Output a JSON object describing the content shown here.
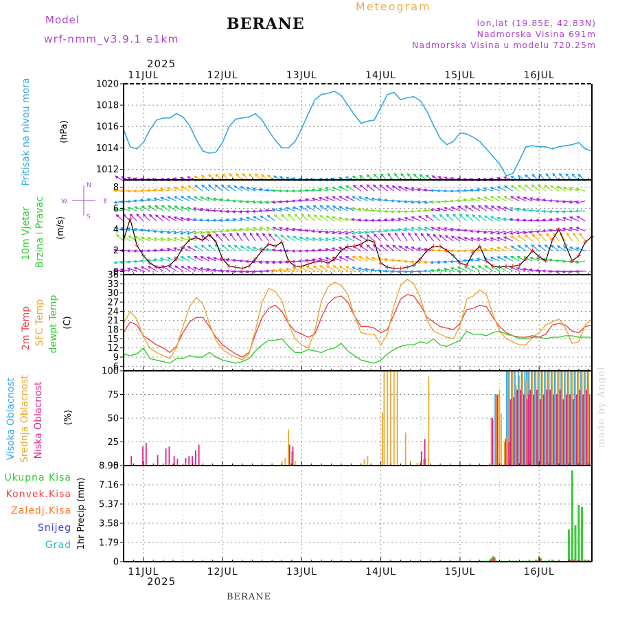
{
  "header": {
    "model_label": "Model",
    "model_name": "wrf-nmm_v3.9.1  e1km",
    "station": "BERANE",
    "title": "Meteogram",
    "lonlat": "lon,lat (19.85E, 42.83N)",
    "elevation": "Nadmorska Visina 691m",
    "model_elevation": "Nadmorska Visina u modelu 720.25m",
    "year_top": "2025",
    "year_bottom": "2025",
    "footer_station": "BERANE",
    "watermark": "made by Angel"
  },
  "colors": {
    "pressure": "#33aadd",
    "temp2m": "#ee4444",
    "sfc": "#e8a830",
    "dew": "#33cc33",
    "high": "#33aaee",
    "mid": "#e8a830",
    "low": "#dd2288",
    "total": "#33cc33",
    "conv": "#ee4444",
    "frozen": "#ff7722",
    "snow": "#4433dd",
    "grad": "#22bbbb",
    "purple": "#aa44cc",
    "wind_line": "#000000",
    "wind_marks": "#ee3333"
  },
  "chart_data": [
    {
      "type": "line",
      "name": "pressure",
      "ylabel_lines": [
        "Pritisak na nivou mora",
        "(hPa)"
      ],
      "ylim": [
        1011,
        1020
      ],
      "yticks": [
        1012,
        1014,
        1016,
        1018,
        1020
      ],
      "xlim": [
        0,
        142
      ],
      "x_ticks_labels": [
        "11JUL",
        "12JUL",
        "13JUL",
        "14JUL",
        "15JUL",
        "16JUL"
      ],
      "x": [
        0,
        2,
        4,
        6,
        8,
        10,
        12,
        14,
        16,
        18,
        20,
        22,
        24,
        26,
        28,
        30,
        32,
        34,
        36,
        38,
        40,
        42,
        44,
        46,
        48,
        50,
        52,
        54,
        56,
        58,
        60,
        62,
        64,
        66,
        68,
        70,
        72,
        74,
        76,
        78,
        80,
        82,
        84,
        86,
        88,
        90,
        92,
        94,
        96,
        98,
        100,
        102,
        104,
        106,
        108,
        110,
        112,
        114,
        116,
        118,
        120,
        122,
        124,
        126,
        128,
        130,
        132,
        134,
        136,
        138,
        140,
        142
      ],
      "values": [
        1015.7,
        1014.1,
        1013.9,
        1014.5,
        1015.7,
        1016.6,
        1016.8,
        1016.8,
        1017.2,
        1016.9,
        1016.1,
        1014.8,
        1013.7,
        1013.5,
        1013.6,
        1014.5,
        1016.0,
        1016.7,
        1016.8,
        1016.9,
        1017.2,
        1016.6,
        1015.6,
        1014.7,
        1014.0,
        1014.0,
        1014.6,
        1015.8,
        1017.2,
        1018.5,
        1019.0,
        1019.1,
        1019.3,
        1018.9,
        1018.0,
        1017.1,
        1016.3,
        1016.5,
        1016.6,
        1017.8,
        1019.0,
        1019.2,
        1018.5,
        1018.7,
        1018.8,
        1018.4,
        1017.4,
        1016.1,
        1014.9,
        1014.3,
        1014.6,
        1015.4,
        1015.3,
        1015.0,
        1014.6,
        1013.9,
        1013.2,
        1012.5,
        1011.4,
        1011.6,
        1012.8,
        1014.1,
        1014.2,
        1014.1,
        1014.1,
        1013.9,
        1014.1,
        1014.2,
        1014.3,
        1014.5,
        1013.9,
        1013.7
      ]
    },
    {
      "type": "line",
      "name": "wind",
      "ylabel_lines": [
        "10m Vjetar",
        "Brzina i Pravac",
        "(m/s)"
      ],
      "compass": [
        "N",
        "S",
        "W",
        "E"
      ],
      "ylim": [
        -0.3,
        8.7
      ],
      "yticks": [
        0,
        2,
        4,
        6,
        8
      ],
      "xlim": [
        0,
        142
      ],
      "x_ticks_labels": [
        "11JUL",
        "12JUL",
        "13JUL",
        "14JUL",
        "15JUL",
        "16JUL"
      ],
      "x": [
        0,
        2,
        4,
        6,
        8,
        10,
        12,
        14,
        16,
        18,
        20,
        22,
        24,
        26,
        28,
        30,
        32,
        34,
        36,
        38,
        40,
        42,
        44,
        46,
        48,
        50,
        52,
        54,
        56,
        58,
        60,
        62,
        64,
        66,
        68,
        70,
        72,
        74,
        76,
        78,
        80,
        82,
        84,
        86,
        88,
        90,
        92,
        94,
        96,
        98,
        100,
        102,
        104,
        106,
        108,
        110,
        112,
        114,
        116,
        118,
        120,
        122,
        124,
        126,
        128,
        130,
        132,
        134,
        136,
        138,
        140,
        142
      ],
      "values": [
        3.0,
        5.0,
        2.5,
        1.5,
        0.8,
        0.4,
        0.4,
        0.6,
        1.2,
        2.3,
        3.0,
        3.2,
        3.0,
        3.5,
        2.8,
        1.2,
        0.5,
        0.4,
        0.3,
        0.5,
        1.2,
        2.0,
        2.6,
        2.4,
        2.8,
        1.0,
        0.5,
        0.5,
        0.7,
        0.9,
        1.0,
        0.8,
        1.2,
        2.0,
        2.4,
        2.4,
        2.6,
        3.0,
        2.8,
        0.8,
        0.4,
        0.3,
        0.3,
        0.4,
        0.6,
        1.2,
        2.0,
        2.4,
        2.4,
        2.0,
        1.5,
        0.8,
        0.6,
        1.8,
        2.4,
        1.0,
        0.5,
        0.4,
        0.5,
        0.5,
        0.6,
        1.2,
        2.0,
        1.4,
        1.0,
        3.0,
        4.0,
        2.5,
        1.0,
        1.5,
        2.8,
        3.3
      ]
    },
    {
      "type": "line",
      "name": "temperature",
      "ylabel_lines": [
        "2m Temp",
        "SFC Temp",
        "dewpt Temp",
        "(C)"
      ],
      "ylim": [
        4.5,
        36
      ],
      "yticks": [
        6,
        9,
        12,
        15,
        18,
        21,
        24,
        27,
        30,
        33,
        36
      ],
      "xlim": [
        0,
        142
      ],
      "x_ticks_labels": [
        "11JUL",
        "12JUL",
        "13JUL",
        "14JUL",
        "15JUL",
        "16JUL"
      ],
      "x": [
        0,
        2,
        4,
        6,
        8,
        10,
        12,
        14,
        16,
        18,
        20,
        22,
        24,
        26,
        28,
        30,
        32,
        34,
        36,
        38,
        40,
        42,
        44,
        46,
        48,
        50,
        52,
        54,
        56,
        58,
        60,
        62,
        64,
        66,
        68,
        70,
        72,
        74,
        76,
        78,
        80,
        82,
        84,
        86,
        88,
        90,
        92,
        94,
        96,
        98,
        100,
        102,
        104,
        106,
        108,
        110,
        112,
        114,
        116,
        118,
        120,
        122,
        124,
        126,
        128,
        130,
        132,
        134,
        136,
        138,
        140,
        142
      ],
      "series": [
        {
          "name": "2m Temp",
          "color_key": "temp2m",
          "values": [
            17.0,
            20.5,
            19.5,
            16.0,
            14.5,
            13.0,
            12.0,
            10.5,
            12.5,
            17.0,
            20.5,
            22.0,
            22.0,
            19.0,
            15.5,
            13.0,
            11.5,
            10.0,
            9.0,
            10.5,
            16.5,
            22.0,
            25.0,
            26.0,
            24.0,
            20.0,
            17.5,
            16.5,
            15.5,
            16.5,
            22.0,
            26.5,
            28.5,
            29.0,
            27.0,
            22.5,
            19.0,
            19.0,
            18.5,
            17.0,
            18.0,
            23.0,
            28.0,
            29.5,
            29.0,
            26.0,
            22.0,
            20.5,
            19.0,
            18.5,
            18.0,
            20.0,
            24.5,
            25.0,
            26.0,
            25.5,
            22.0,
            19.0,
            17.0,
            16.0,
            15.5,
            15.5,
            16.0,
            15.5,
            16.5,
            19.5,
            20.0,
            19.5,
            17.5,
            17.0,
            19.0,
            19.5
          ]
        },
        {
          "name": "SFC Temp",
          "color_key": "sfc",
          "values": [
            20.0,
            24.0,
            21.5,
            15.5,
            12.0,
            10.5,
            9.5,
            8.5,
            12.0,
            19.0,
            25.5,
            28.5,
            26.5,
            20.0,
            14.5,
            11.5,
            10.0,
            9.0,
            8.0,
            10.0,
            18.0,
            27.0,
            31.5,
            30.5,
            27.5,
            20.0,
            15.0,
            13.0,
            12.0,
            17.5,
            27.5,
            32.0,
            33.5,
            32.5,
            29.5,
            22.5,
            17.0,
            16.5,
            16.5,
            13.0,
            16.5,
            26.0,
            32.5,
            34.5,
            33.0,
            28.5,
            21.0,
            17.5,
            16.5,
            15.5,
            15.0,
            19.0,
            28.0,
            29.0,
            31.0,
            29.5,
            23.0,
            17.5,
            15.0,
            14.0,
            13.0,
            13.0,
            15.5,
            17.0,
            19.5,
            20.5,
            21.5,
            18.5,
            13.5,
            14.0,
            19.5,
            21.5
          ]
        },
        {
          "name": "dewpt Temp",
          "color_key": "dew",
          "values": [
            10.0,
            9.5,
            10.0,
            12.0,
            8.5,
            8.0,
            7.5,
            7.0,
            8.5,
            8.5,
            9.5,
            9.0,
            9.0,
            10.5,
            9.0,
            8.0,
            7.5,
            7.0,
            7.5,
            8.5,
            11.0,
            13.0,
            14.5,
            14.5,
            15.0,
            12.5,
            10.5,
            10.5,
            11.5,
            11.0,
            10.5,
            11.5,
            12.0,
            13.5,
            11.0,
            9.5,
            8.0,
            7.5,
            7.0,
            8.0,
            10.0,
            11.5,
            12.5,
            13.0,
            13.0,
            14.0,
            13.5,
            15.0,
            13.0,
            12.5,
            13.5,
            14.5,
            17.5,
            16.5,
            16.5,
            16.0,
            17.0,
            17.5,
            16.5,
            16.0,
            15.0,
            15.0,
            15.5,
            15.5,
            15.0,
            15.5,
            15.5,
            16.0,
            16.0,
            15.5,
            15.5,
            15.5
          ]
        }
      ]
    },
    {
      "type": "bar",
      "name": "cloud",
      "ylabel_lines": [
        "Visoka Oblacnost",
        "Srednja Oblacnost",
        "Niska Oblacnost",
        "(%)"
      ],
      "ylim": [
        0,
        100
      ],
      "yticks": [
        0,
        25,
        50,
        75,
        100
      ],
      "xlim": [
        0,
        142
      ],
      "x_ticks_labels": [
        "11JUL",
        "12JUL",
        "13JUL",
        "14JUL",
        "15JUL",
        "16JUL"
      ],
      "x": [
        2.0,
        5.5,
        6.5,
        10.0,
        12.5,
        13.5,
        15.0,
        16.0,
        18.5,
        19.5,
        20.5,
        21.5,
        22.5,
        23.5,
        48.0,
        49.0,
        50.0,
        51.0,
        52.0,
        73.0,
        74.0,
        78.5,
        79.0,
        80.0,
        81.0,
        82.0,
        83.0,
        85.5,
        87.0,
        88.0,
        89.0,
        90.0,
        91.0,
        91.5,
        92.5,
        102.0,
        111.5,
        112.0,
        113.0,
        113.5,
        114.0,
        114.5,
        115.5,
        116.0,
        116.5,
        117.0,
        118.0,
        119.0,
        120.0,
        121.0,
        122.0,
        122.5,
        123.0,
        124.0,
        125.0,
        126.0,
        127.0,
        128.0,
        129.0,
        130.0,
        131.0,
        132.0,
        133.0,
        134.0,
        135.0,
        136.0,
        137.0,
        138.0,
        139.0,
        140.0,
        141.0
      ],
      "series": [
        {
          "name": "Visoka Oblacnost",
          "color_key": "high",
          "values": [
            0,
            0,
            0,
            0,
            0,
            0,
            0,
            0,
            0,
            0,
            0,
            0,
            0,
            0,
            0,
            0,
            0,
            0,
            0,
            0,
            0,
            0,
            0,
            0,
            0,
            0,
            0,
            0,
            0,
            0,
            0,
            0,
            0,
            0,
            0,
            0,
            0,
            0,
            75,
            0,
            0,
            0,
            0,
            0,
            100,
            100,
            100,
            100,
            100,
            100,
            100,
            100,
            100,
            100,
            100,
            100,
            100,
            100,
            100,
            100,
            100,
            100,
            100,
            100,
            100,
            100,
            100,
            100,
            100,
            100,
            100
          ]
        },
        {
          "name": "Srednja Oblacnost",
          "color_key": "mid",
          "values": [
            0,
            0,
            0,
            0,
            0,
            0,
            0,
            0,
            0,
            0,
            0,
            0,
            0,
            0,
            5,
            8,
            38,
            15,
            5,
            7,
            10,
            56,
            100,
            100,
            100,
            100,
            100,
            35,
            5,
            0,
            3,
            5,
            7,
            8,
            94,
            0,
            50,
            48,
            75,
            75,
            80,
            55,
            25,
            30,
            100,
            100,
            100,
            85,
            95,
            100,
            90,
            70,
            100,
            100,
            100,
            100,
            100,
            100,
            100,
            100,
            100,
            100,
            100,
            100,
            100,
            100,
            100,
            100,
            100,
            100,
            100
          ]
        },
        {
          "name": "Niska Oblacnost",
          "color_key": "low",
          "values": [
            10,
            20,
            24,
            11,
            18,
            20,
            10,
            7,
            8,
            10,
            10,
            16,
            22,
            0,
            0,
            0,
            22,
            20,
            0,
            0,
            0,
            0,
            0,
            0,
            0,
            0,
            0,
            0,
            0,
            0,
            0,
            15,
            28,
            0,
            0,
            0,
            50,
            0,
            75,
            0,
            0,
            0,
            28,
            0,
            25,
            70,
            72,
            80,
            80,
            75,
            70,
            75,
            80,
            75,
            80,
            70,
            75,
            80,
            80,
            75,
            75,
            80,
            70,
            75,
            75,
            70,
            75,
            80,
            75,
            80,
            75
          ]
        }
      ]
    },
    {
      "type": "bar",
      "name": "precipitation",
      "ylabel_lines": [
        "1hr Precip (mm)"
      ],
      "legend": [
        "Ukupna Kisa",
        "Konvek.Kisa",
        "Zaledj.Kisa",
        "Snijeg",
        "Grad"
      ],
      "ylim": [
        0,
        8.95
      ],
      "yticks": [
        0,
        1.79,
        3.58,
        5.37,
        7.16,
        8.95
      ],
      "yticklabels": [
        "0",
        "1.79",
        "3.58",
        "5.37",
        "7.16",
        "8.95"
      ],
      "xlim": [
        0,
        142
      ],
      "x_ticks_labels": [
        "11JUL",
        "12JUL",
        "13JUL",
        "14JUL",
        "15JUL",
        "16JUL"
      ],
      "x": [
        108.0,
        109.0,
        110.0,
        111.5,
        112.0,
        113.0,
        114.0,
        117.0,
        118.0,
        119.0,
        121.0,
        122.0,
        123.0,
        124.0,
        125.0,
        126.0,
        128.0,
        129.0,
        130.0,
        135.0,
        136.0,
        137.0,
        138.0,
        139.0,
        140.0,
        141.0
      ],
      "series": [
        {
          "name": "Ukupna Kisa",
          "color_key": "total",
          "values": [
            0.05,
            0.1,
            0.1,
            0.3,
            0.5,
            0.1,
            0.1,
            0.1,
            0.1,
            0.1,
            0.1,
            0.1,
            0.1,
            0.1,
            0.2,
            0.5,
            0.1,
            0.1,
            0.2,
            3.0,
            8.5,
            3.4,
            5.3,
            5.1,
            0.2,
            0.1
          ]
        },
        {
          "name": "Konvek.Kisa",
          "color_key": "conv",
          "values": [
            0.05,
            0.05,
            0.05,
            0.2,
            0.4,
            0.05,
            0.05,
            0.05,
            0.05,
            0.05,
            0.05,
            0.05,
            0.05,
            0.05,
            0.1,
            0.3,
            0.05,
            0.05,
            0.1,
            0.2,
            0.2,
            0.1,
            0.1,
            0.1,
            0.1,
            0.1
          ]
        }
      ]
    }
  ]
}
